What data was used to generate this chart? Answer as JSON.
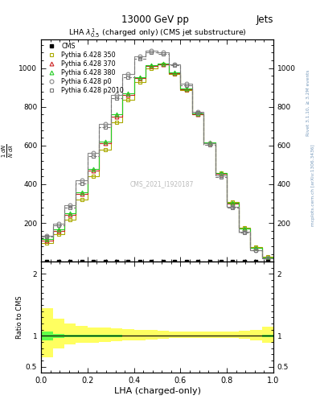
{
  "title_top": "13000 GeV pp",
  "title_right": "Jets",
  "plot_title": "LHA $\\lambda^{1}_{0.5}$ (charged only) (CMS jet substructure)",
  "xlabel": "LHA (charged-only)",
  "ylabel": "$\\frac{1}{N}\\frac{dN}{d\\mathrm{LHA}}$",
  "ratio_ylabel": "Ratio to CMS",
  "watermark": "CMS_2021_I1920187",
  "right_label_top": "Rivet 3.1.10, ≥ 3.2M events",
  "right_label_bot": "mcplots.cern.ch [arXiv:1306.3436]",
  "x_bins": [
    0.0,
    0.05,
    0.1,
    0.15,
    0.2,
    0.25,
    0.3,
    0.35,
    0.4,
    0.45,
    0.5,
    0.55,
    0.6,
    0.65,
    0.7,
    0.75,
    0.8,
    0.85,
    0.9,
    0.95,
    1.0
  ],
  "cms_y_flat": [
    2,
    2,
    2,
    2,
    2,
    2,
    2,
    2,
    2,
    2,
    2,
    2,
    2,
    2,
    2,
    2,
    2,
    2,
    2,
    2
  ],
  "p350_y": [
    95,
    140,
    215,
    320,
    440,
    580,
    720,
    835,
    930,
    1000,
    1020,
    970,
    885,
    760,
    610,
    460,
    310,
    175,
    75,
    25
  ],
  "p370_y": [
    110,
    160,
    240,
    350,
    470,
    610,
    750,
    860,
    950,
    1010,
    1020,
    975,
    890,
    760,
    610,
    455,
    300,
    170,
    70,
    22
  ],
  "p380_y": [
    115,
    165,
    250,
    360,
    480,
    620,
    760,
    870,
    955,
    1015,
    1025,
    980,
    895,
    765,
    615,
    460,
    305,
    172,
    72,
    23
  ],
  "p0_y": [
    135,
    195,
    290,
    420,
    560,
    710,
    860,
    970,
    1060,
    1090,
    1080,
    1020,
    920,
    775,
    610,
    445,
    285,
    155,
    60,
    18
  ],
  "p2010_y": [
    130,
    188,
    280,
    405,
    545,
    695,
    845,
    955,
    1048,
    1082,
    1072,
    1014,
    912,
    768,
    602,
    438,
    278,
    150,
    58,
    17
  ],
  "cms_color": "#000000",
  "p350_color": "#aaaa00",
  "p370_color": "#cc2222",
  "p380_color": "#22cc22",
  "p0_color": "#888888",
  "p2010_color": "#777777",
  "ratio_band_green_lo": [
    0.93,
    0.97,
    0.98,
    0.98,
    0.98,
    0.98,
    0.98,
    0.99,
    0.99,
    0.99,
    0.995,
    0.995,
    0.995,
    0.995,
    0.995,
    0.995,
    0.995,
    0.995,
    0.99,
    0.98
  ],
  "ratio_band_green_hi": [
    1.07,
    1.03,
    1.02,
    1.02,
    1.02,
    1.02,
    1.02,
    1.01,
    1.01,
    1.01,
    1.005,
    1.005,
    1.005,
    1.005,
    1.005,
    1.005,
    1.005,
    1.005,
    1.01,
    1.02
  ],
  "ratio_band_yellow_lo": [
    0.65,
    0.8,
    0.86,
    0.88,
    0.89,
    0.9,
    0.91,
    0.92,
    0.93,
    0.94,
    0.95,
    0.96,
    0.96,
    0.96,
    0.96,
    0.96,
    0.96,
    0.95,
    0.93,
    0.88
  ],
  "ratio_band_yellow_hi": [
    1.45,
    1.28,
    1.2,
    1.16,
    1.14,
    1.13,
    1.12,
    1.11,
    1.1,
    1.09,
    1.08,
    1.07,
    1.07,
    1.07,
    1.07,
    1.07,
    1.07,
    1.08,
    1.1,
    1.15
  ],
  "ylim_main": [
    0,
    1150
  ],
  "ylim_ratio": [
    0.4,
    2.2
  ],
  "yticks_main": [
    200,
    400,
    600,
    800,
    1000
  ],
  "yticks_ratio": [
    0.5,
    1.0,
    2.0
  ],
  "xlim": [
    0.0,
    1.0
  ]
}
